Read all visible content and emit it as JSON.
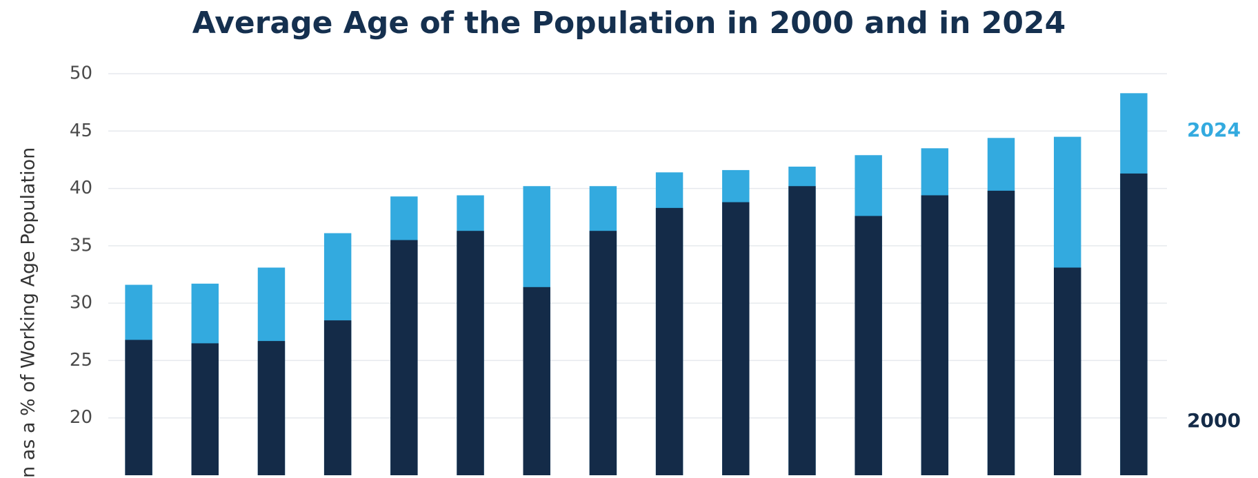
{
  "chart_data": {
    "type": "overlap_bar",
    "title": "Average Age of the Population in 2000 and in 2024",
    "y_label": "n as a % of Working Age Population",
    "categories": [
      null,
      null,
      null,
      null,
      null,
      null,
      null,
      null,
      null,
      null,
      null,
      null,
      null,
      null,
      null,
      null
    ],
    "series": [
      {
        "name": "2024",
        "color": "#33aadf",
        "values": [
          31.6,
          31.7,
          33.1,
          36.1,
          39.3,
          39.4,
          40.2,
          40.2,
          41.4,
          41.6,
          41.9,
          42.9,
          43.5,
          44.4,
          44.5,
          48.3
        ]
      },
      {
        "name": "2000",
        "color": "#142b48",
        "values": [
          26.8,
          26.5,
          26.7,
          28.5,
          35.5,
          36.3,
          31.4,
          36.3,
          38.3,
          38.8,
          40.2,
          37.6,
          39.4,
          39.8,
          33.1,
          41.3
        ]
      }
    ],
    "ylim": [
      15,
      50
    ],
    "yticks": [
      20,
      25,
      30,
      35,
      40,
      45,
      50
    ],
    "grid": true
  }
}
